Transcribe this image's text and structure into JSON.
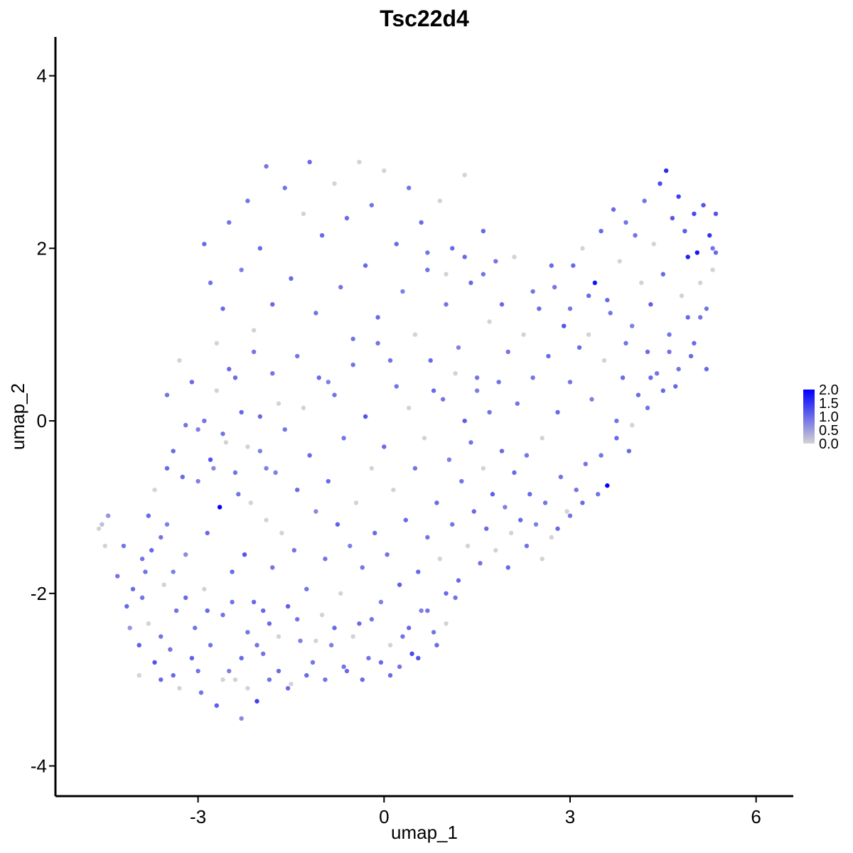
{
  "chart_data": {
    "type": "scatter",
    "title": "Tsc22d4",
    "xlabel": "umap_1",
    "ylabel": "umap_2",
    "xlim": [
      -5.3,
      6.6
    ],
    "ylim": [
      -4.35,
      4.45
    ],
    "xticks": [
      -3,
      0,
      3,
      6
    ],
    "xtick_labels": [
      "-3",
      "0",
      "3",
      "6"
    ],
    "yticks": [
      -4,
      -2,
      0,
      2,
      4
    ],
    "ytick_labels": [
      "-4",
      "-2",
      "0",
      "2",
      "4"
    ],
    "grid": false,
    "color_scale": {
      "min": 0.0,
      "max": 2.0,
      "low_color": "#d3d3d3",
      "high_color": "#0000ff",
      "ticks": [
        2.0,
        1.5,
        1.0,
        0.5,
        0.0
      ],
      "tick_labels": [
        "2.0",
        "1.5",
        "1.0",
        "0.5",
        "0.0"
      ],
      "legend_position": "right"
    },
    "points": [
      [
        -4.6,
        -1.25,
        0.0
      ],
      [
        -4.55,
        -1.2,
        0.2
      ],
      [
        -4.5,
        -1.45,
        0.0
      ],
      [
        -4.45,
        -1.1,
        0.6
      ],
      [
        -4.3,
        -1.8,
        0.9
      ],
      [
        -4.15,
        -2.15,
        1.0
      ],
      [
        -4.1,
        -2.4,
        0.6
      ],
      [
        -3.95,
        -2.6,
        1.1
      ],
      [
        -3.9,
        -2.05,
        0.9
      ],
      [
        -3.8,
        -2.35,
        0.0
      ],
      [
        -3.75,
        -1.5,
        1.0
      ],
      [
        -3.7,
        -2.8,
        1.2
      ],
      [
        -3.6,
        -2.5,
        0.9
      ],
      [
        -3.55,
        -1.9,
        0.0
      ],
      [
        -3.5,
        -1.2,
        0.8
      ],
      [
        -3.4,
        -2.95,
        1.0
      ],
      [
        -3.35,
        -2.2,
        0.9
      ],
      [
        -3.3,
        -3.1,
        0.0
      ],
      [
        -3.25,
        -0.65,
        1.0
      ],
      [
        -3.2,
        -1.55,
        0.7
      ],
      [
        -3.1,
        -2.75,
        1.1
      ],
      [
        -3.05,
        -2.4,
        0.9
      ],
      [
        -3.0,
        -0.1,
        0.8
      ],
      [
        -2.95,
        -3.15,
        0.9
      ],
      [
        -2.9,
        -1.95,
        0.0
      ],
      [
        -2.85,
        -1.3,
        1.0
      ],
      [
        -2.8,
        -2.6,
        0.9
      ],
      [
        -2.75,
        -0.55,
        0.7
      ],
      [
        -2.7,
        -3.3,
        1.1
      ],
      [
        -2.65,
        -1.0,
        2.0
      ],
      [
        -2.6,
        -2.25,
        0.9
      ],
      [
        -2.55,
        -0.25,
        0.0
      ],
      [
        -2.5,
        -2.9,
        0.8
      ],
      [
        -2.45,
        -1.75,
        1.0
      ],
      [
        -2.4,
        -3.0,
        0.0
      ],
      [
        -2.35,
        -0.85,
        0.9
      ],
      [
        -2.3,
        -3.45,
        0.7
      ],
      [
        -2.25,
        -1.55,
        1.2
      ],
      [
        -2.2,
        -2.45,
        0.9
      ],
      [
        -2.15,
        -0.95,
        0.0
      ],
      [
        -2.1,
        -2.1,
        1.0
      ],
      [
        -2.05,
        -3.25,
        1.4
      ],
      [
        -2.0,
        -0.35,
        0.8
      ],
      [
        -1.95,
        -2.7,
        0.9
      ],
      [
        -1.9,
        -1.15,
        0.0
      ],
      [
        -1.85,
        -2.35,
        1.0
      ],
      [
        -1.8,
        -1.7,
        0.9
      ],
      [
        -1.75,
        -0.6,
        0.8
      ],
      [
        -1.7,
        -2.9,
        1.0
      ],
      [
        -1.65,
        -1.3,
        0.0
      ],
      [
        -1.6,
        -0.1,
        0.9
      ],
      [
        -1.55,
        -2.15,
        1.1
      ],
      [
        -1.5,
        -3.05,
        0.0
      ],
      [
        -1.45,
        -1.5,
        0.9
      ],
      [
        -1.4,
        -0.8,
        1.0
      ],
      [
        -1.35,
        -2.55,
        0.8
      ],
      [
        -1.3,
        0.15,
        0.0
      ],
      [
        -1.25,
        -1.95,
        0.9
      ],
      [
        -1.2,
        -0.4,
        1.0
      ],
      [
        -1.15,
        -2.8,
        0.9
      ],
      [
        -1.1,
        -1.05,
        0.7
      ],
      [
        -1.05,
        0.5,
        1.0
      ],
      [
        -1.0,
        -2.25,
        0.0
      ],
      [
        -0.95,
        -1.6,
        0.9
      ],
      [
        -0.9,
        -0.7,
        1.0
      ],
      [
        -0.85,
        -2.6,
        0.8
      ],
      [
        -0.8,
        0.3,
        0.9
      ],
      [
        -0.75,
        -1.2,
        1.1
      ],
      [
        -0.7,
        -2.0,
        0.0
      ],
      [
        -0.65,
        -0.2,
        0.9
      ],
      [
        -0.6,
        -2.9,
        1.0
      ],
      [
        -0.55,
        -1.45,
        0.8
      ],
      [
        -0.5,
        0.65,
        0.9
      ],
      [
        -0.45,
        -0.95,
        0.0
      ],
      [
        -0.4,
        -2.35,
        1.0
      ],
      [
        -0.35,
        -1.7,
        0.9
      ],
      [
        -0.3,
        0.05,
        1.2
      ],
      [
        -0.25,
        -2.75,
        0.9
      ],
      [
        -0.2,
        -0.55,
        0.0
      ],
      [
        -0.15,
        -1.3,
        1.0
      ],
      [
        -0.1,
        0.9,
        0.9
      ],
      [
        -0.05,
        -2.1,
        0.8
      ],
      [
        0.0,
        -0.3,
        1.0
      ],
      [
        0.05,
        -1.55,
        0.9
      ],
      [
        0.1,
        -2.95,
        1.0
      ],
      [
        0.15,
        -0.8,
        0.0
      ],
      [
        0.2,
        0.4,
        0.9
      ],
      [
        0.25,
        -1.9,
        1.1
      ],
      [
        0.3,
        -2.5,
        0.9
      ],
      [
        0.35,
        -1.15,
        1.0
      ],
      [
        0.4,
        0.15,
        0.0
      ],
      [
        0.45,
        -2.7,
        1.3
      ],
      [
        0.5,
        -0.55,
        0.9
      ],
      [
        0.55,
        -1.75,
        1.0
      ],
      [
        0.6,
        -2.2,
        0.8
      ],
      [
        0.65,
        -0.2,
        0.0
      ],
      [
        0.7,
        -1.35,
        0.9
      ],
      [
        0.75,
        0.7,
        1.0
      ],
      [
        0.8,
        -2.45,
        0.9
      ],
      [
        0.85,
        -0.95,
        1.0
      ],
      [
        0.9,
        -1.6,
        0.0
      ],
      [
        0.95,
        0.25,
        0.9
      ],
      [
        1.0,
        -2.0,
        1.0
      ],
      [
        1.05,
        -0.45,
        0.8
      ],
      [
        1.1,
        -1.2,
        0.9
      ],
      [
        1.15,
        0.55,
        0.0
      ],
      [
        1.2,
        -1.85,
        1.0
      ],
      [
        1.25,
        -0.7,
        0.9
      ],
      [
        1.3,
        0.0,
        1.1
      ],
      [
        1.35,
        -1.45,
        0.0
      ],
      [
        1.4,
        -0.25,
        0.9
      ],
      [
        1.45,
        -1.05,
        1.0
      ],
      [
        1.5,
        0.35,
        0.8
      ],
      [
        1.55,
        -1.65,
        0.9
      ],
      [
        1.6,
        -0.55,
        0.0
      ],
      [
        1.65,
        -1.25,
        1.0
      ],
      [
        1.7,
        0.1,
        0.9
      ],
      [
        1.75,
        -0.85,
        1.1
      ],
      [
        1.8,
        -1.5,
        0.0
      ],
      [
        1.85,
        0.45,
        0.9
      ],
      [
        1.9,
        -0.35,
        1.0
      ],
      [
        1.95,
        -1.0,
        0.8
      ],
      [
        2.0,
        0.8,
        0.9
      ],
      [
        2.05,
        -1.3,
        0.0
      ],
      [
        2.1,
        -0.6,
        1.0
      ],
      [
        2.15,
        0.2,
        0.9
      ],
      [
        2.2,
        -1.15,
        1.0
      ],
      [
        2.25,
        1.0,
        0.0
      ],
      [
        2.3,
        -0.4,
        0.9
      ],
      [
        2.35,
        -0.85,
        1.0
      ],
      [
        2.4,
        0.5,
        0.9
      ],
      [
        2.45,
        -1.2,
        0.8
      ],
      [
        2.5,
        1.3,
        1.0
      ],
      [
        2.55,
        -0.2,
        0.0
      ],
      [
        2.6,
        -0.95,
        0.9
      ],
      [
        2.65,
        0.75,
        1.0
      ],
      [
        2.7,
        -1.35,
        0.0
      ],
      [
        2.75,
        1.55,
        0.9
      ],
      [
        2.8,
        0.1,
        1.0
      ],
      [
        2.85,
        -0.65,
        0.9
      ],
      [
        2.9,
        1.1,
        1.2
      ],
      [
        2.95,
        -1.05,
        0.0
      ],
      [
        3.0,
        0.45,
        0.9
      ],
      [
        3.05,
        1.8,
        1.0
      ],
      [
        3.1,
        -0.8,
        0.9
      ],
      [
        3.15,
        0.85,
        1.0
      ],
      [
        3.2,
        2.0,
        0.0
      ],
      [
        3.25,
        -0.5,
        0.9
      ],
      [
        3.3,
        1.45,
        1.0
      ],
      [
        3.35,
        0.25,
        0.8
      ],
      [
        3.4,
        1.6,
        1.8
      ],
      [
        3.45,
        -0.85,
        0.9
      ],
      [
        3.5,
        2.2,
        1.0
      ],
      [
        3.55,
        0.7,
        0.0
      ],
      [
        3.6,
        -0.75,
        2.0
      ],
      [
        3.65,
        1.25,
        0.9
      ],
      [
        3.7,
        2.45,
        1.0
      ],
      [
        3.75,
        0.0,
        0.9
      ],
      [
        3.8,
        1.85,
        0.0
      ],
      [
        3.85,
        0.5,
        1.0
      ],
      [
        3.9,
        2.3,
        0.9
      ],
      [
        3.95,
        -0.35,
        1.0
      ],
      [
        4.0,
        1.1,
        0.8
      ],
      [
        4.05,
        2.15,
        0.9
      ],
      [
        4.1,
        0.3,
        1.0
      ],
      [
        4.15,
        1.6,
        0.0
      ],
      [
        4.2,
        2.55,
        0.9
      ],
      [
        4.25,
        0.8,
        1.0
      ],
      [
        4.3,
        1.35,
        1.1
      ],
      [
        4.35,
        2.05,
        0.0
      ],
      [
        4.4,
        0.55,
        0.9
      ],
      [
        4.45,
        2.75,
        1.3
      ],
      [
        4.5,
        1.7,
        1.0
      ],
      [
        4.55,
        2.9,
        1.6
      ],
      [
        4.6,
        1.0,
        0.9
      ],
      [
        4.65,
        2.35,
        1.2
      ],
      [
        4.7,
        0.4,
        1.0
      ],
      [
        4.75,
        2.6,
        1.4
      ],
      [
        4.8,
        1.45,
        0.0
      ],
      [
        4.85,
        2.2,
        1.1
      ],
      [
        4.9,
        1.9,
        1.7
      ],
      [
        4.95,
        0.75,
        1.0
      ],
      [
        5.0,
        2.4,
        1.3
      ],
      [
        5.05,
        1.95,
        1.8
      ],
      [
        5.1,
        1.2,
        0.9
      ],
      [
        5.15,
        2.5,
        1.2
      ],
      [
        5.2,
        0.6,
        1.0
      ],
      [
        5.25,
        2.15,
        1.5
      ],
      [
        5.3,
        1.75,
        0.0
      ],
      [
        5.35,
        2.4,
        1.2
      ],
      [
        5.35,
        1.95,
        1.0
      ],
      [
        5.3,
        2.0,
        0.9
      ],
      [
        -2.9,
        2.05,
        1.0
      ],
      [
        -2.8,
        1.6,
        0.9
      ],
      [
        -2.7,
        0.9,
        0.0
      ],
      [
        -2.6,
        1.3,
        1.0
      ],
      [
        -2.5,
        2.3,
        0.9
      ],
      [
        -2.4,
        0.5,
        1.0
      ],
      [
        -2.3,
        1.75,
        0.8
      ],
      [
        -2.2,
        2.55,
        0.9
      ],
      [
        -2.1,
        1.05,
        0.0
      ],
      [
        -2.0,
        2.0,
        1.0
      ],
      [
        -1.9,
        2.95,
        0.9
      ],
      [
        -1.8,
        1.35,
        1.0
      ],
      [
        -1.7,
        0.2,
        0.0
      ],
      [
        -1.6,
        2.7,
        0.9
      ],
      [
        -1.5,
        1.65,
        1.0
      ],
      [
        -1.4,
        0.75,
        0.9
      ],
      [
        -1.3,
        2.4,
        0.0
      ],
      [
        -1.2,
        3.0,
        1.0
      ],
      [
        -1.1,
        1.25,
        0.9
      ],
      [
        -1.0,
        2.15,
        1.0
      ],
      [
        -0.9,
        0.45,
        0.8
      ],
      [
        -0.8,
        2.75,
        0.0
      ],
      [
        -0.7,
        1.55,
        0.9
      ],
      [
        -0.6,
        2.35,
        1.0
      ],
      [
        -0.5,
        0.95,
        0.9
      ],
      [
        -0.4,
        3.0,
        0.0
      ],
      [
        -0.3,
        1.8,
        1.0
      ],
      [
        -0.2,
        2.5,
        0.9
      ],
      [
        -0.1,
        1.2,
        1.0
      ],
      [
        0.0,
        2.9,
        0.0
      ],
      [
        0.1,
        0.7,
        0.9
      ],
      [
        0.2,
        2.05,
        1.0
      ],
      [
        0.3,
        1.5,
        0.8
      ],
      [
        0.4,
        2.7,
        0.9
      ],
      [
        0.5,
        1.0,
        0.0
      ],
      [
        0.6,
        2.3,
        1.0
      ],
      [
        0.7,
        1.75,
        0.9
      ],
      [
        0.8,
        0.35,
        1.0
      ],
      [
        0.9,
        2.55,
        0.0
      ],
      [
        1.0,
        1.35,
        0.9
      ],
      [
        1.1,
        2.0,
        1.0
      ],
      [
        1.2,
        0.85,
        0.8
      ],
      [
        1.3,
        2.85,
        0.0
      ],
      [
        1.4,
        1.6,
        1.0
      ],
      [
        1.5,
        0.5,
        0.9
      ],
      [
        1.6,
        2.2,
        1.0
      ],
      [
        1.7,
        1.15,
        0.0
      ],
      [
        1.8,
        1.85,
        0.9
      ],
      [
        -3.5,
        0.3,
        0.9
      ],
      [
        -3.4,
        -0.35,
        1.0
      ],
      [
        -3.3,
        0.7,
        0.0
      ],
      [
        -3.2,
        -0.05,
        0.9
      ],
      [
        -3.1,
        0.45,
        1.0
      ],
      [
        -3.0,
        -0.7,
        0.8
      ],
      [
        -2.9,
        0.0,
        0.9
      ],
      [
        -2.8,
        -0.45,
        1.2
      ],
      [
        -2.7,
        0.35,
        0.0
      ],
      [
        -2.6,
        -0.15,
        0.9
      ],
      [
        -2.5,
        0.6,
        1.0
      ],
      [
        -2.4,
        -0.6,
        0.9
      ],
      [
        -2.3,
        0.1,
        1.0
      ],
      [
        -2.2,
        -0.3,
        0.0
      ],
      [
        -2.1,
        0.8,
        0.9
      ],
      [
        -2.0,
        0.05,
        1.0
      ],
      [
        -1.9,
        -0.55,
        0.8
      ],
      [
        -1.8,
        0.55,
        0.9
      ],
      [
        -3.9,
        -1.6,
        0.9
      ],
      [
        -3.8,
        -1.1,
        1.0
      ],
      [
        -3.7,
        -0.8,
        0.0
      ],
      [
        -3.6,
        -1.35,
        0.9
      ],
      [
        -3.5,
        -0.55,
        1.0
      ],
      [
        -3.4,
        -1.75,
        0.8
      ],
      [
        -4.2,
        -1.45,
        0.9
      ],
      [
        -4.05,
        -1.95,
        1.0
      ],
      [
        -3.95,
        -2.95,
        0.0
      ],
      [
        -3.85,
        -1.75,
        0.9
      ],
      [
        -3.6,
        -3.0,
        1.0
      ],
      [
        -3.45,
        -2.65,
        0.9
      ],
      [
        -3.2,
        -2.05,
        1.0
      ],
      [
        -3.0,
        -2.9,
        0.9
      ],
      [
        -2.85,
        -2.2,
        1.0
      ],
      [
        -2.6,
        -3.0,
        0.0
      ],
      [
        -2.45,
        -2.1,
        0.9
      ],
      [
        -2.3,
        -2.75,
        1.0
      ],
      [
        -2.2,
        -3.1,
        0.0
      ],
      [
        -2.05,
        -2.6,
        0.9
      ],
      [
        -1.95,
        -2.2,
        1.0
      ],
      [
        -1.85,
        -3.0,
        0.9
      ],
      [
        -1.7,
        -2.5,
        0.0
      ],
      [
        -1.55,
        -3.1,
        1.0
      ],
      [
        -1.4,
        -2.3,
        0.9
      ],
      [
        -1.25,
        -2.95,
        1.0
      ],
      [
        -1.1,
        -2.55,
        0.0
      ],
      [
        -0.95,
        -3.0,
        0.9
      ],
      [
        -0.8,
        -2.4,
        1.0
      ],
      [
        -0.65,
        -2.85,
        0.9
      ],
      [
        -0.5,
        -2.5,
        0.0
      ],
      [
        -0.35,
        -3.0,
        1.0
      ],
      [
        -0.2,
        -2.3,
        0.9
      ],
      [
        -0.05,
        -2.8,
        1.0
      ],
      [
        0.1,
        -2.6,
        0.0
      ],
      [
        0.25,
        -2.85,
        0.9
      ],
      [
        0.4,
        -2.4,
        1.0
      ],
      [
        0.55,
        -2.75,
        1.2
      ],
      [
        0.7,
        -2.2,
        0.9
      ],
      [
        0.85,
        -2.6,
        1.0
      ],
      [
        1.0,
        -2.35,
        0.0
      ],
      [
        1.15,
        -2.05,
        0.9
      ],
      [
        2.0,
        -1.7,
        1.0
      ],
      [
        2.3,
        -1.45,
        0.9
      ],
      [
        2.55,
        -1.6,
        0.0
      ],
      [
        2.8,
        -1.25,
        1.0
      ],
      [
        3.0,
        -1.1,
        0.9
      ],
      [
        3.2,
        -0.95,
        1.0
      ],
      [
        3.5,
        -0.4,
        0.9
      ],
      [
        3.75,
        -0.2,
        1.0
      ],
      [
        4.0,
        -0.05,
        0.0
      ],
      [
        4.25,
        0.15,
        0.9
      ],
      [
        4.5,
        0.35,
        1.0
      ],
      [
        4.75,
        0.6,
        0.9
      ],
      [
        5.0,
        0.9,
        1.0
      ],
      [
        5.2,
        1.3,
        0.9
      ],
      [
        5.1,
        1.6,
        0.0
      ],
      [
        4.9,
        1.2,
        1.0
      ],
      [
        4.6,
        0.8,
        0.9
      ],
      [
        4.3,
        0.5,
        1.0
      ],
      [
        3.9,
        0.9,
        0.9
      ],
      [
        3.6,
        1.4,
        1.0
      ],
      [
        3.3,
        1.0,
        0.0
      ],
      [
        3.0,
        1.3,
        0.9
      ],
      [
        2.7,
        1.8,
        1.0
      ],
      [
        2.4,
        1.5,
        0.9
      ],
      [
        2.1,
        1.9,
        0.0
      ],
      [
        1.9,
        1.35,
        1.0
      ],
      [
        1.6,
        1.7,
        0.9
      ],
      [
        1.3,
        1.9,
        1.0
      ],
      [
        1.0,
        1.7,
        0.0
      ],
      [
        0.7,
        1.95,
        0.9
      ]
    ]
  }
}
